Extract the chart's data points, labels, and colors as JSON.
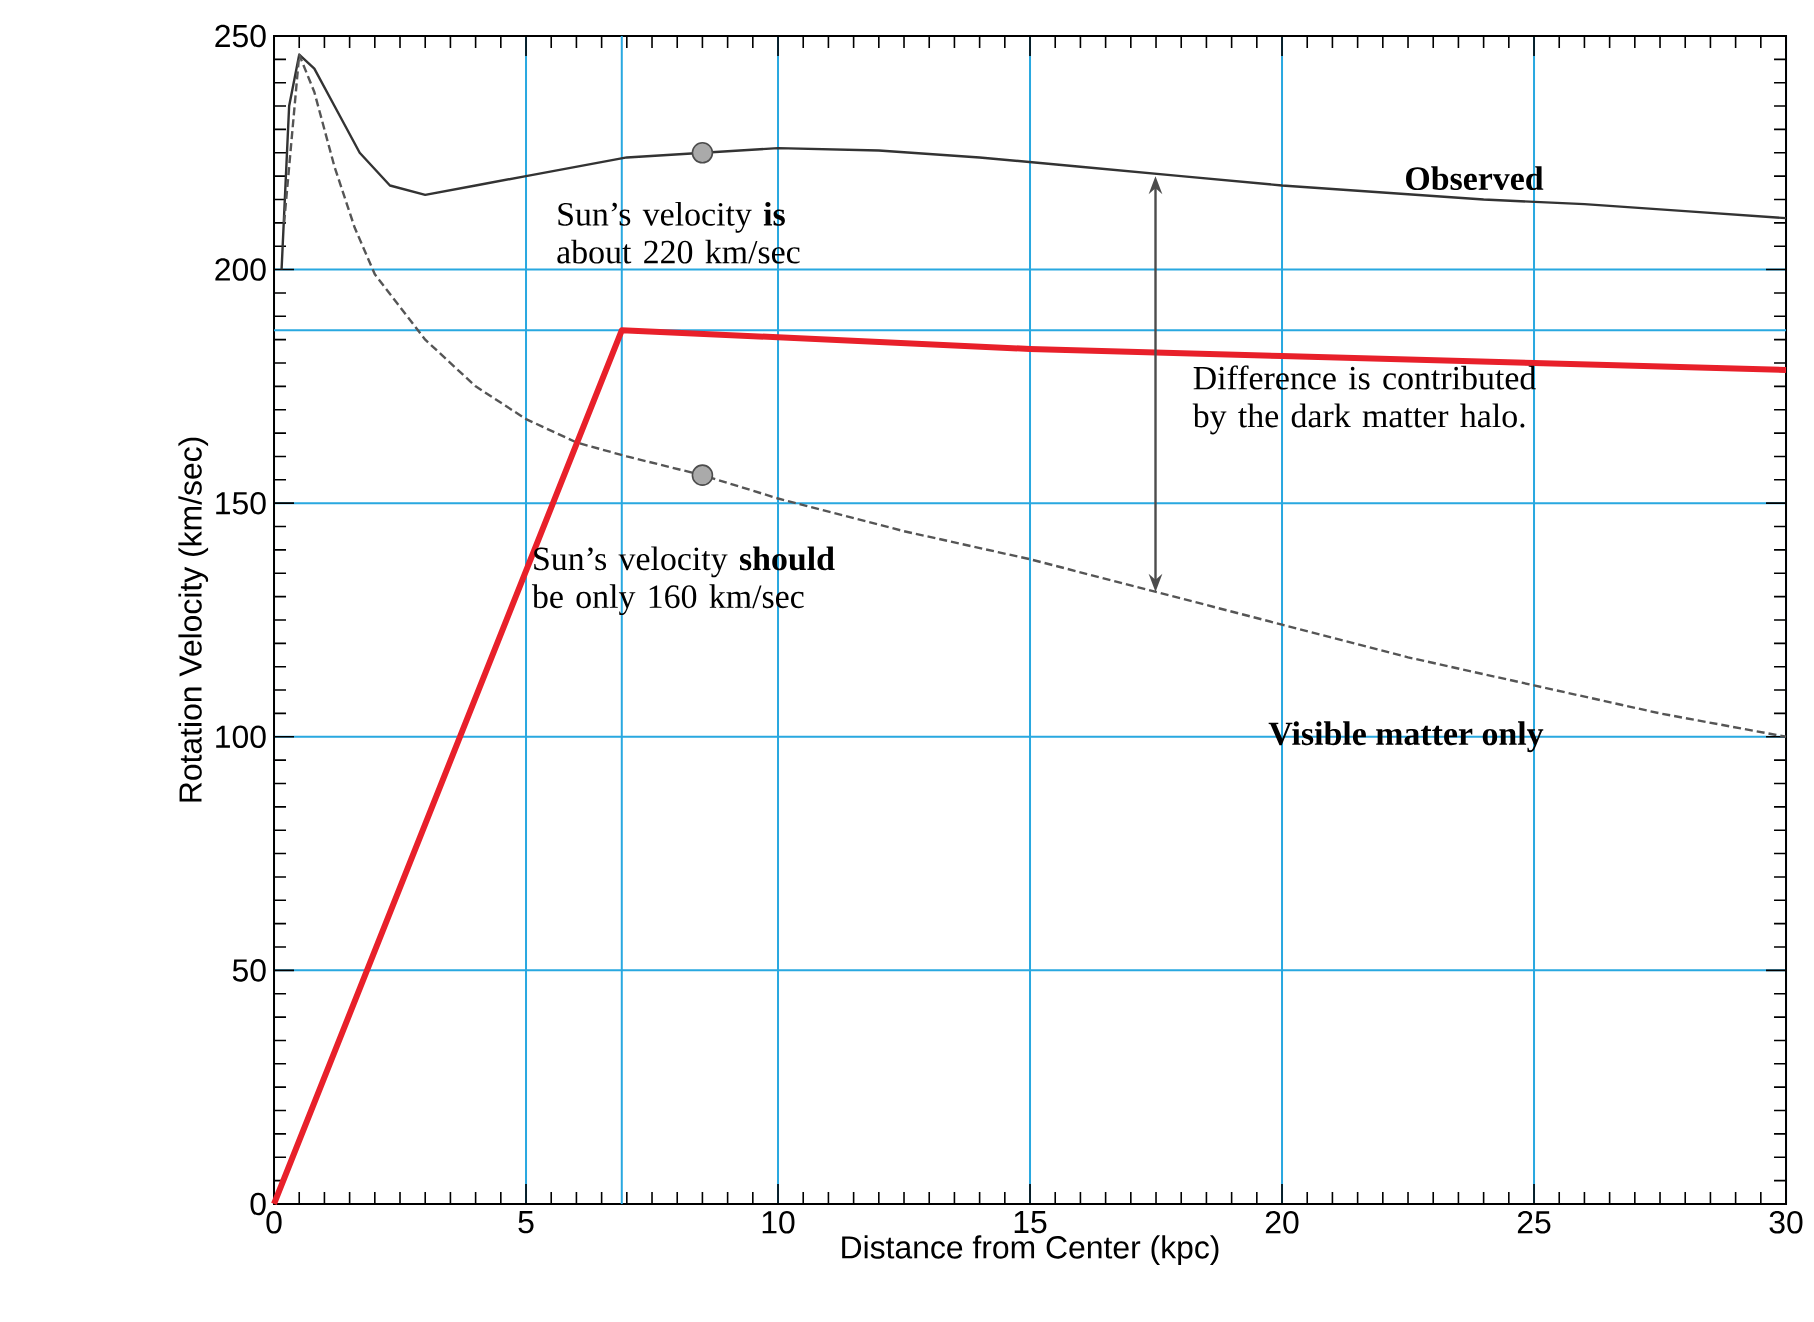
{
  "chart_data": {
    "type": "line",
    "xlabel": "Distance from Center (kpc)",
    "ylabel": "Rotation Velocity (km/sec)",
    "xlim": [
      0,
      30
    ],
    "ylim": [
      0,
      250
    ],
    "xticks": [
      0,
      5,
      10,
      15,
      20,
      25,
      30
    ],
    "yticks": [
      0,
      50,
      100,
      150,
      200,
      250
    ],
    "grid": true,
    "series": [
      {
        "name": "Observed",
        "color": "#333333",
        "line_style": "solid",
        "x": [
          0.15,
          0.3,
          0.5,
          0.8,
          1.2,
          1.7,
          2.3,
          3,
          4,
          5,
          6,
          7,
          8.5,
          10,
          12,
          14,
          16,
          18,
          20,
          22,
          24,
          26,
          28,
          30
        ],
        "values": [
          200,
          235,
          246,
          243,
          235,
          225,
          218,
          216,
          218,
          220,
          222,
          224,
          225,
          226,
          225.5,
          224,
          222,
          220,
          218,
          216.5,
          215,
          214,
          212.5,
          211
        ]
      },
      {
        "name": "Visible matter only",
        "color": "#555555",
        "line_style": "dashed",
        "x": [
          0.2,
          0.5,
          0.8,
          1.2,
          1.6,
          2,
          3,
          4,
          5,
          6,
          7,
          8.5,
          10,
          12.5,
          15,
          17.5,
          20,
          22.5,
          25,
          27.5,
          30
        ],
        "values": [
          210,
          246,
          238,
          222,
          209,
          199,
          185,
          175,
          168,
          163,
          160,
          156,
          151,
          144,
          138,
          131,
          124,
          117,
          111,
          105,
          100
        ]
      },
      {
        "color": "#e8202a",
        "line_style": "solid",
        "x": [
          0,
          6.9,
          10,
          15,
          20,
          25,
          30
        ],
        "values": [
          0,
          187,
          185.5,
          183,
          181.5,
          180,
          178.5
        ]
      },
      {
        "type": "scatter",
        "color": "#aaaaaa",
        "marker": "circle",
        "x": [
          8.5,
          8.5
        ],
        "values": [
          225,
          156
        ]
      }
    ],
    "ref_lines": [
      {
        "axis": "x",
        "value": 6.9,
        "color": "#29a8e0"
      },
      {
        "axis": "y",
        "value": 187,
        "color": "#29a8e0"
      }
    ],
    "annotations": [
      "Sun’s velocity **is** about 220 km/sec",
      "Sun’s velocity **should** be only 160 km/sec",
      "Difference is contributed by the dark matter halo."
    ]
  }
}
